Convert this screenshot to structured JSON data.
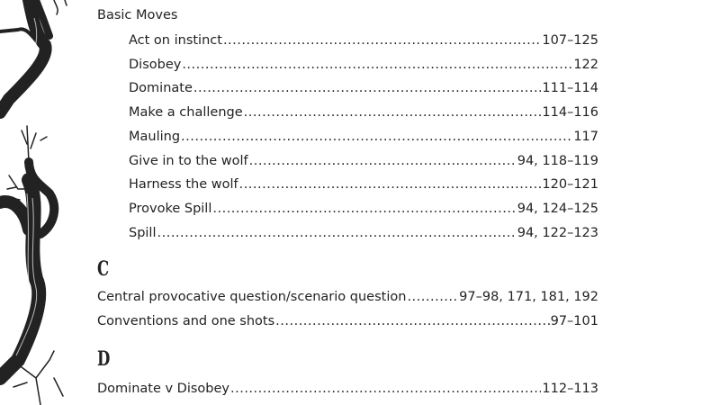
{
  "heading": "Basic Moves",
  "basic_moves": [
    {
      "label": "Act on instinct",
      "pages": "107–125"
    },
    {
      "label": "Disobey",
      "pages": "122"
    },
    {
      "label": "Dominate",
      "pages": "111–114"
    },
    {
      "label": "Make a challenge",
      "pages": "114–116"
    },
    {
      "label": "Mauling",
      "pages": "117"
    },
    {
      "label": "Give in to the wolf",
      "pages": "94, 118–119"
    },
    {
      "label": "Harness the wolf",
      "pages": "120–121"
    },
    {
      "label": "Provoke Spill",
      "pages": "94, 124–125"
    },
    {
      "label": "Spill",
      "pages": "94, 122–123"
    }
  ],
  "section_c": {
    "letter": "C",
    "entries": [
      {
        "label": "Central provocative question/scenario question",
        "pages": "97–98, 171, 181, 192"
      },
      {
        "label": "Conventions and one shots",
        "pages": "97–101"
      }
    ]
  },
  "section_d": {
    "letter": "D",
    "entries": [
      {
        "label": "Dominate v Disobey",
        "pages": "112–113"
      }
    ]
  }
}
